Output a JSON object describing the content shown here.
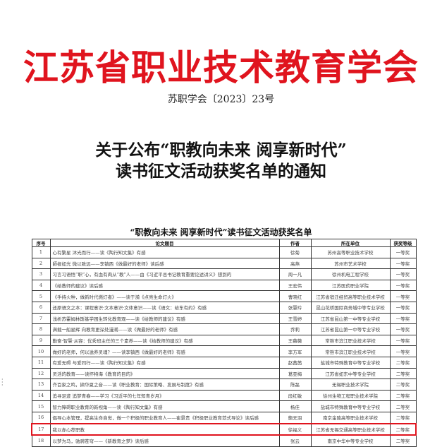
{
  "header": {
    "organization": "江苏省职业技术教育学会",
    "doc_number": "苏职学会〔2023〕23号",
    "heading_line1": "关于公布“职教向未来 阅享新时代”",
    "heading_line2": "读书征文活动获奖名单的通知"
  },
  "table": {
    "title": "“职教向未来 阅享新时代”读书征文活动获奖名单",
    "columns": [
      "序号",
      "论文题目",
      "作者",
      "所在单位",
      "获奖等级"
    ],
    "highlight_color": "#e0141e",
    "rows": [
      [
        "1",
        "心有繁星 沐光而行——读《陶行知文集》有感",
        "徐菊",
        "苏州高等职业技术学校",
        "一等奖"
      ],
      [
        "2",
        "師者如光 微以致远——李镇西《做最好的老师》读后感",
        "高燕",
        "苏州市艺术学校",
        "一等奖"
      ],
      [
        "3",
        "习言习语悟“职”心，有血有肉从“教”人——由《习近平总书记教育重要论述讲义》想到的",
        "周一凡",
        "徐州机电工程学校",
        "一等奖"
      ],
      [
        "4",
        "《给教师的建议》读后感",
        "王宏伟",
        "江苏医药职业学院",
        "一等奖"
      ],
      [
        "5",
        "《手持火种，做新时代燃灯者》——读于漪《点亮生命灯火》",
        "曹晓红",
        "江苏省宿迁经贸高等职业技术学校",
        "一等奖"
      ],
      [
        "6",
        "还原语文之本：课程意识·文本意识·文体意识——读《语文：给东有约》有感",
        "张慧玲",
        "昆山花桥国际商务城中等专业学校",
        "一等奖"
      ],
      [
        "7",
        "浅析苏霍姆林斯基学困生转化教育观——读《给教师的建议》有感",
        "王雪婷",
        "江苏省昆山第一中等专业学校",
        "一等奖"
      ],
      [
        "8",
        "满载一船星辉 向教育更深处漫溯——读《做最好的老师》有感",
        "乔莉",
        "江苏省昆山第一中等专业学校",
        "一等奖"
      ],
      [
        "9",
        "勤奋·智慧·从容：优秀班主任的三个素养——读《给教师的建议》有感",
        "王薇薇",
        "常熟市滨江职业技术学校",
        "一等奖"
      ],
      [
        "10",
        "做好的老师，何以滋养灵魂？——读李镇西《做最好的老师》有感",
        "李方军",
        "常熟市滨江职业技术学校",
        "一等奖"
      ],
      [
        "11",
        "有爱无碍 与爱同行——读《陶行知文集》有感",
        "赵茜茜",
        "盐城市特殊教育中等专业学校",
        "二等奖"
      ],
      [
        "12",
        "灵活的教育——读怀特海《教育的目的》",
        "葛亚梅",
        "江苏省如东中等专业学校",
        "二等奖"
      ],
      [
        "13",
        "齐百家之鸣，撷华夏之音——读《职业教育：国际策略、发展与制度》有感",
        "陈磊",
        "无锡职业技术学院",
        "二等奖"
      ],
      [
        "14",
        "追寻足迹 追梦青春——学习《习近平的七年知青岁月》",
        "段红敏",
        "徐州生物工程职业技术学院",
        "二等奖"
      ],
      [
        "15",
        "智力障碍职业教育的新视角——读《陶行知文集》有感",
        "杨佳",
        "盐城市特殊教育中等专业学校",
        "二等奖"
      ],
      [
        "16",
        "倡导心本管理，提高生命自觉，做一个积极的职业教育人——崔景贵《积极职业教育范式导论》读后感",
        "鲍无羽",
        "南京金陵高等职业技术学校",
        "二等奖"
      ],
      [
        "17",
        "我以赤心荐职教",
        "徐福义",
        "江苏省无锡交通高等职业技术学校",
        "二等奖"
      ],
      [
        "18",
        "以梦为马，驰骋苍穹——《新教育之梦》读后感",
        "张云",
        "南京中华中等专业学校",
        "二等奖"
      ]
    ]
  }
}
